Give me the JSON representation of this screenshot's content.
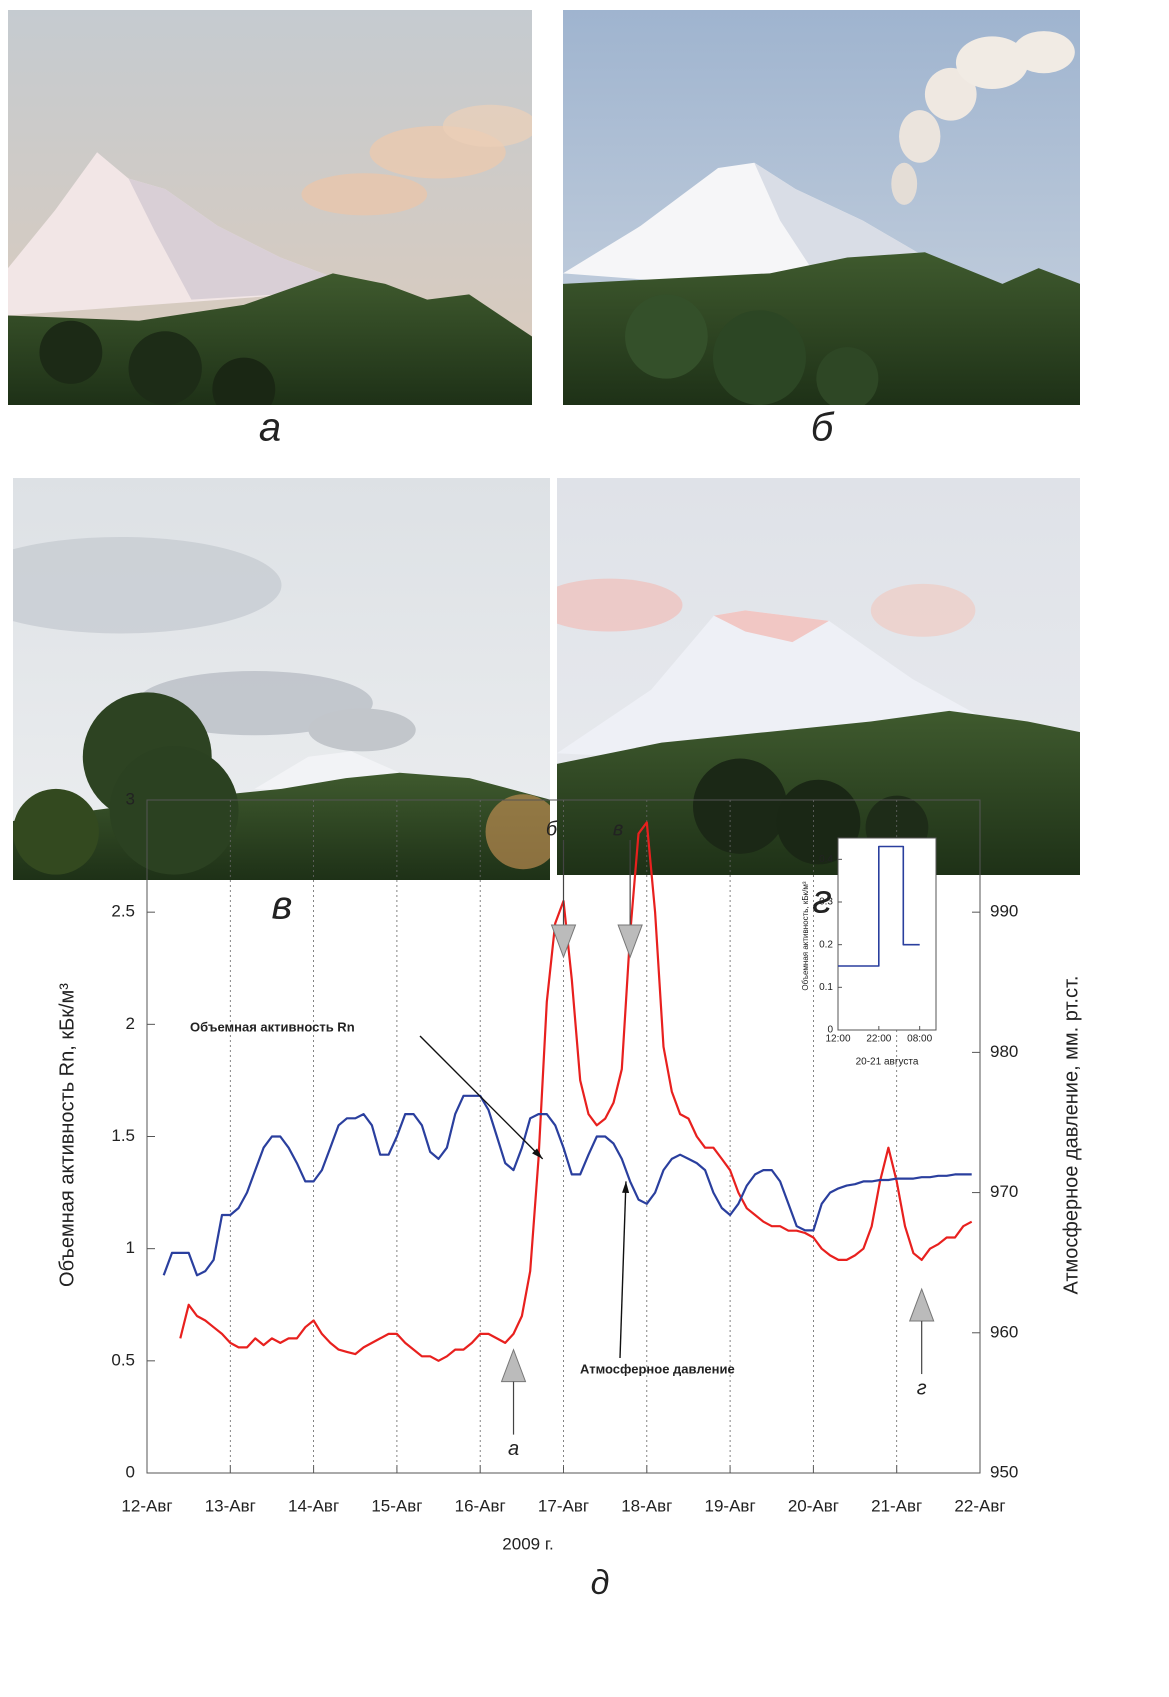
{
  "photos": [
    {
      "label": "а"
    },
    {
      "label": "б"
    },
    {
      "label": "в"
    },
    {
      "label": "г"
    }
  ],
  "chart_data": [
    {
      "type": "line",
      "panel_label": "д",
      "x_label": "2009 г.",
      "y_label": "Объемная активность Rn, кБк/м³",
      "y2_label": "Атмосферное давление, мм. рт.ст.",
      "xlim": [
        12,
        22
      ],
      "xticks": [
        {
          "value": 12,
          "label": "12-Авг"
        },
        {
          "value": 13,
          "label": "13-Авг"
        },
        {
          "value": 14,
          "label": "14-Авг"
        },
        {
          "value": 15,
          "label": "15-Авг"
        },
        {
          "value": 16,
          "label": "16-Авг"
        },
        {
          "value": 17,
          "label": "17-Авг"
        },
        {
          "value": 18,
          "label": "18-Авг"
        },
        {
          "value": 19,
          "label": "19-Авг"
        },
        {
          "value": 20,
          "label": "20-Авг"
        },
        {
          "value": 21,
          "label": "21-Авг"
        },
        {
          "value": 22,
          "label": "22-Авг"
        }
      ],
      "ylim": [
        0,
        3
      ],
      "yticks": [
        0,
        0.5,
        1,
        1.5,
        2,
        2.5,
        3
      ],
      "y2lim": [
        950,
        998
      ],
      "y2ticks": [
        950,
        960,
        970,
        980,
        990
      ],
      "grid": "x",
      "x": [
        12.2,
        12.3,
        12.4,
        12.5,
        12.6,
        12.7,
        12.8,
        12.9,
        13.0,
        13.1,
        13.2,
        13.3,
        13.4,
        13.5,
        13.6,
        13.7,
        13.8,
        13.9,
        14.0,
        14.1,
        14.2,
        14.3,
        14.4,
        14.5,
        14.6,
        14.7,
        14.8,
        14.9,
        15.0,
        15.1,
        15.2,
        15.3,
        15.4,
        15.5,
        15.6,
        15.7,
        15.8,
        15.9,
        16.0,
        16.1,
        16.2,
        16.3,
        16.4,
        16.5,
        16.6,
        16.7,
        16.8,
        16.9,
        17.0,
        17.1,
        17.2,
        17.3,
        17.4,
        17.5,
        17.6,
        17.7,
        17.8,
        17.9,
        18.0,
        18.1,
        18.2,
        18.3,
        18.4,
        18.5,
        18.6,
        18.7,
        18.8,
        18.9,
        19.0,
        19.1,
        19.2,
        19.3,
        19.4,
        19.5,
        19.6,
        19.7,
        19.8,
        19.9,
        20.0,
        20.1,
        20.2,
        20.3,
        20.4,
        20.5,
        20.6,
        20.7,
        20.8,
        20.9,
        21.0,
        21.1,
        21.2,
        21.3,
        21.4,
        21.5,
        21.6,
        21.7,
        21.8,
        21.9
      ],
      "series": [
        {
          "name": "Объемная активность Rn",
          "color": "#e8201e",
          "values": [
            null,
            null,
            0.6,
            0.75,
            0.7,
            0.68,
            0.65,
            0.62,
            0.58,
            0.56,
            0.56,
            0.6,
            0.57,
            0.6,
            0.58,
            0.6,
            0.6,
            0.65,
            0.68,
            0.62,
            0.58,
            0.55,
            0.54,
            0.53,
            0.56,
            0.58,
            0.6,
            0.62,
            0.62,
            0.58,
            0.55,
            0.52,
            0.52,
            0.5,
            0.52,
            0.55,
            0.55,
            0.58,
            0.62,
            0.62,
            0.6,
            0.58,
            0.62,
            0.7,
            0.9,
            1.4,
            2.1,
            2.45,
            2.55,
            2.2,
            1.75,
            1.6,
            1.55,
            1.58,
            1.65,
            1.8,
            2.4,
            2.85,
            2.9,
            2.5,
            1.9,
            1.7,
            1.6,
            1.58,
            1.5,
            1.45,
            1.45,
            1.4,
            1.35,
            1.25,
            1.18,
            1.15,
            1.12,
            1.1,
            1.1,
            1.08,
            1.08,
            1.07,
            1.05,
            1.0,
            0.97,
            0.95,
            0.95,
            0.97,
            1.0,
            1.1,
            1.3,
            1.45,
            1.3,
            1.1,
            0.98,
            0.95,
            1.0,
            1.02,
            1.05,
            1.05,
            1.1,
            1.12
          ]
        },
        {
          "name": "Атмосферное давление",
          "color": "#2a3f9e",
          "axis": "y2",
          "values": [
            964.1,
            965.7,
            965.7,
            965.7,
            964.1,
            964.4,
            965.2,
            968.4,
            968.4,
            968.9,
            970,
            971.6,
            973.2,
            974,
            974,
            973.2,
            972.1,
            970.8,
            970.8,
            971.6,
            973.2,
            974.8,
            975.3,
            975.3,
            975.6,
            974.8,
            972.7,
            972.7,
            974,
            975.6,
            975.6,
            974.8,
            972.9,
            972.4,
            973.2,
            975.6,
            976.9,
            976.9,
            976.9,
            975.9,
            974,
            972.1,
            971.6,
            973.2,
            975.3,
            975.6,
            975.6,
            974.8,
            973.2,
            971.3,
            971.3,
            972.7,
            974,
            974,
            973.5,
            972.4,
            970.8,
            969.5,
            969.2,
            970,
            971.6,
            972.4,
            972.7,
            972.4,
            972.1,
            971.6,
            970,
            968.9,
            968.4,
            969.2,
            970.5,
            971.3,
            971.6,
            971.6,
            970.8,
            969.2,
            967.6,
            967.3,
            967.3,
            969.2,
            970,
            970.3,
            970.5,
            970.6,
            970.8,
            970.8,
            970.9,
            970.9,
            971,
            971,
            971,
            971.1,
            971.1,
            971.2,
            971.2,
            971.3,
            971.3,
            971.3
          ]
        }
      ],
      "annotations": [
        {
          "text": "б",
          "x": 17.0,
          "y": 2.3,
          "arrow": "down"
        },
        {
          "text": "в",
          "x": 17.8,
          "y": 2.3,
          "arrow": "down"
        },
        {
          "text": "а",
          "x": 16.4,
          "y": 0.55,
          "arrow": "up"
        },
        {
          "text": "г",
          "x": 21.3,
          "y": 0.82,
          "arrow": "up"
        },
        {
          "text": "Объемная активность Rn",
          "x": 16.75,
          "y": 1.4,
          "arrow": "line"
        },
        {
          "text": "Атмосферное  давление",
          "x": 17.75,
          "y": 1.3,
          "arrow": "line"
        }
      ]
    },
    {
      "type": "line",
      "x_label": "20-21 августа",
      "y_label": "Объемная активность, кБк/м³",
      "xlim": [
        0,
        24
      ],
      "xticks": [
        {
          "value": 0,
          "label": "12:00"
        },
        {
          "value": 10,
          "label": "22:00"
        },
        {
          "value": 20,
          "label": "08:00"
        }
      ],
      "ylim": [
        0,
        0.45
      ],
      "yticks": [
        0,
        0.1,
        0.2,
        0.3,
        0.4
      ],
      "x": [
        0,
        10,
        10,
        16,
        16,
        20
      ],
      "series": [
        {
          "color": "#2a3f9e",
          "values": [
            0.15,
            0.15,
            0.43,
            0.43,
            0.2,
            0.2
          ]
        }
      ]
    }
  ]
}
